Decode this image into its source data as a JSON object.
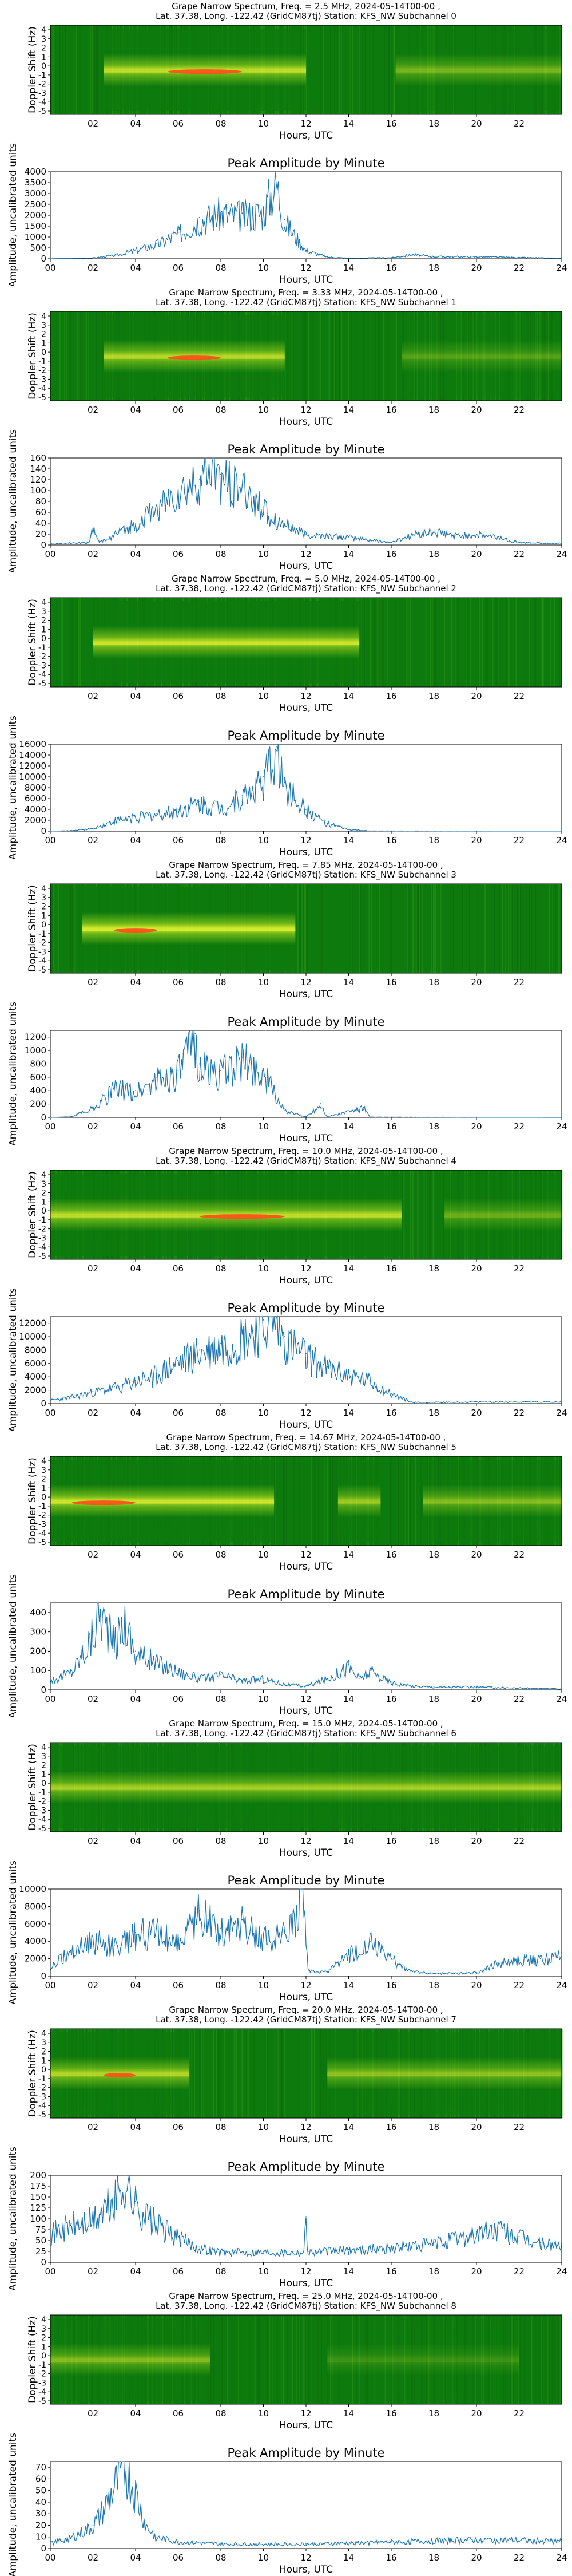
{
  "figure": {
    "x_ticks_spec": [
      "02",
      "04",
      "06",
      "08",
      "10",
      "12",
      "14",
      "16",
      "18",
      "20",
      "22"
    ],
    "x_ticks_amp": [
      "00",
      "02",
      "04",
      "06",
      "08",
      "10",
      "12",
      "14",
      "16",
      "18",
      "20",
      "22",
      "24"
    ],
    "x_label": "Hours, UTC",
    "spec_ylabel": "Doppler Shift (Hz)",
    "amp_ylabel": "Amplitude, uncalibrated units",
    "amp_title": "Peak Amplitude by Minute",
    "colors": {
      "line": "#1f77b4",
      "spec_bg": "#0d7a0d",
      "spec_mid": "#7fc21b",
      "spec_hot": "#ffff33",
      "spec_peak": "#ff4a1a"
    }
  },
  "chart_data": [
    {
      "type": "spectrogram+line",
      "spec_title_1": "Grape Narrow Spectrum, Freq. = 2.5 MHz, 2024-05-14T00-00 ,",
      "spec_title_2": "Lat.  37.38, Long. -122.42 (GridCM87tj) Station: KFS_NW Subchannel 0",
      "spec_y_ticks": [
        "4",
        "3",
        "2",
        "1",
        "0",
        "-1",
        "-2",
        "-3",
        "-4",
        "-5"
      ],
      "spec_band": [
        {
          "start": 2.5,
          "end": 12.0,
          "intensity": 0.75,
          "red_start": 5.5,
          "red_end": 9.0
        },
        {
          "start": 16.2,
          "end": 24.0,
          "intensity": 0.45,
          "red_start": 0,
          "red_end": 0
        }
      ],
      "ylim": [
        0,
        4000
      ],
      "y_ticks": [
        "0",
        "500",
        "1000",
        "1500",
        "2000",
        "2500",
        "3000",
        "3500",
        "4000"
      ],
      "envelope": [
        [
          0,
          0
        ],
        [
          1,
          20
        ],
        [
          2,
          40
        ],
        [
          3,
          150
        ],
        [
          4,
          400
        ],
        [
          5,
          700
        ],
        [
          6,
          1200
        ],
        [
          7,
          1900
        ],
        [
          8,
          2200
        ],
        [
          9,
          2100
        ],
        [
          10,
          2300
        ],
        [
          10.6,
          3800
        ],
        [
          11,
          1800
        ],
        [
          12,
          400
        ],
        [
          13,
          80
        ],
        [
          14,
          30
        ],
        [
          16,
          50
        ],
        [
          17,
          200
        ],
        [
          18,
          100
        ],
        [
          20,
          100
        ],
        [
          22,
          60
        ],
        [
          24,
          20
        ]
      ]
    },
    {
      "type": "spectrogram+line",
      "spec_title_1": "Grape Narrow Spectrum, Freq. = 3.33 MHz, 2024-05-14T00-00 ,",
      "spec_title_2": "Lat.  37.38, Long. -122.42 (GridCM87tj) Station: KFS_NW Subchannel 1",
      "spec_y_ticks": [
        "4",
        "3",
        "2",
        "1",
        "0",
        "-1",
        "-2",
        "-3",
        "-4",
        "-5"
      ],
      "spec_band": [
        {
          "start": 2.5,
          "end": 11.0,
          "intensity": 0.7,
          "red_start": 5.5,
          "red_end": 8.0
        },
        {
          "start": 16.5,
          "end": 24.0,
          "intensity": 0.3,
          "red_start": 0,
          "red_end": 0
        }
      ],
      "ylim": [
        0,
        160
      ],
      "y_ticks": [
        "0",
        "20",
        "40",
        "60",
        "80",
        "100",
        "120",
        "140",
        "160"
      ],
      "envelope": [
        [
          0,
          2
        ],
        [
          1.8,
          5
        ],
        [
          2,
          30
        ],
        [
          2.3,
          5
        ],
        [
          4,
          40
        ],
        [
          5,
          70
        ],
        [
          6,
          100
        ],
        [
          7,
          120
        ],
        [
          7.7,
          160
        ],
        [
          8,
          130
        ],
        [
          9,
          110
        ],
        [
          10,
          70
        ],
        [
          11,
          40
        ],
        [
          12,
          20
        ],
        [
          14,
          15
        ],
        [
          16,
          5
        ],
        [
          17,
          20
        ],
        [
          18,
          25
        ],
        [
          19,
          18
        ],
        [
          20,
          20
        ],
        [
          21,
          15
        ],
        [
          22,
          5
        ],
        [
          24,
          3
        ]
      ]
    },
    {
      "type": "spectrogram+line",
      "spec_title_1": "Grape Narrow Spectrum, Freq. = 5.0 MHz, 2024-05-14T00-00 ,",
      "spec_title_2": "Lat.  37.38, Long. -122.42 (GridCM87tj) Station: KFS_NW Subchannel 2",
      "spec_y_ticks": [
        "4",
        "3",
        "2",
        "1",
        "0",
        "-1",
        "-2",
        "-3",
        "-4",
        "-5"
      ],
      "spec_band": [
        {
          "start": 2.0,
          "end": 14.5,
          "intensity": 0.8,
          "red_start": 0,
          "red_end": 0
        }
      ],
      "ylim": [
        0,
        16000
      ],
      "y_ticks": [
        "0",
        "2000",
        "4000",
        "6000",
        "8000",
        "10000",
        "12000",
        "14000",
        "16000"
      ],
      "envelope": [
        [
          0,
          0
        ],
        [
          1,
          100
        ],
        [
          2,
          500
        ],
        [
          3,
          2000
        ],
        [
          4,
          2800
        ],
        [
          5,
          3200
        ],
        [
          6,
          4000
        ],
        [
          7,
          5500
        ],
        [
          8,
          4500
        ],
        [
          9,
          6500
        ],
        [
          10,
          10000
        ],
        [
          10.6,
          15500
        ],
        [
          11,
          9000
        ],
        [
          12,
          4000
        ],
        [
          13,
          1500
        ],
        [
          14,
          300
        ],
        [
          15,
          50
        ],
        [
          24,
          10
        ]
      ]
    },
    {
      "type": "spectrogram+line",
      "spec_title_1": "Grape Narrow Spectrum, Freq. = 7.85 MHz, 2024-05-14T00-00 ,",
      "spec_title_2": "Lat.  37.38, Long. -122.42 (GridCM87tj) Station: KFS_NW Subchannel 3",
      "spec_y_ticks": [
        "4",
        "3",
        "2",
        "1",
        "0",
        "-1",
        "-2",
        "-3",
        "-4",
        "-5"
      ],
      "spec_band": [
        {
          "start": 1.5,
          "end": 11.5,
          "intensity": 0.85,
          "red_start": 3.0,
          "red_end": 5.0
        }
      ],
      "ylim": [
        0,
        1300
      ],
      "y_ticks": [
        "0",
        "200",
        "400",
        "600",
        "800",
        "1000",
        "1200"
      ],
      "envelope": [
        [
          0,
          0
        ],
        [
          1,
          10
        ],
        [
          2,
          150
        ],
        [
          3,
          450
        ],
        [
          4,
          400
        ],
        [
          5,
          600
        ],
        [
          6,
          700
        ],
        [
          6.8,
          1250
        ],
        [
          7,
          800
        ],
        [
          8,
          700
        ],
        [
          9,
          900
        ],
        [
          10,
          700
        ],
        [
          11,
          100
        ],
        [
          12,
          10
        ],
        [
          12.7,
          210
        ],
        [
          13,
          10
        ],
        [
          14.7,
          150
        ],
        [
          15,
          5
        ],
        [
          24,
          0
        ]
      ]
    },
    {
      "type": "spectrogram+line",
      "spec_title_1": "Grape Narrow Spectrum, Freq. = 10.0 MHz, 2024-05-14T00-00 ,",
      "spec_title_2": "Lat.  37.38, Long. -122.42 (GridCM87tj) Station: KFS_NW Subchannel 4",
      "spec_y_ticks": [
        "4",
        "3",
        "2",
        "1",
        "0",
        "-1",
        "-2",
        "-3",
        "-4",
        "-5"
      ],
      "spec_band": [
        {
          "start": 0.0,
          "end": 16.5,
          "intensity": 0.75,
          "red_start": 7.0,
          "red_end": 11.0
        },
        {
          "start": 18.5,
          "end": 24.0,
          "intensity": 0.4,
          "red_start": 0,
          "red_end": 0
        }
      ],
      "ylim": [
        0,
        13000
      ],
      "y_ticks": [
        "0",
        "2000",
        "4000",
        "6000",
        "8000",
        "10000",
        "12000"
      ],
      "envelope": [
        [
          0,
          500
        ],
        [
          1,
          1000
        ],
        [
          2,
          1800
        ],
        [
          3,
          2500
        ],
        [
          4,
          3500
        ],
        [
          5,
          4500
        ],
        [
          6,
          6500
        ],
        [
          7,
          8000
        ],
        [
          8,
          9000
        ],
        [
          9,
          10500
        ],
        [
          10,
          12500
        ],
        [
          10.5,
          13500
        ],
        [
          11,
          10000
        ],
        [
          12,
          7500
        ],
        [
          13,
          5500
        ],
        [
          14,
          4500
        ],
        [
          15,
          3500
        ],
        [
          16,
          1500
        ],
        [
          17,
          200
        ],
        [
          24,
          300
        ]
      ]
    },
    {
      "type": "spectrogram+line",
      "spec_title_1": "Grape Narrow Spectrum, Freq. = 14.67 MHz, 2024-05-14T00-00 ,",
      "spec_title_2": "Lat.  37.38, Long. -122.42 (GridCM87tj) Station: KFS_NW Subchannel 5",
      "spec_y_ticks": [
        "4",
        "3",
        "2",
        "1",
        "0",
        "-1",
        "-2",
        "-3",
        "-4",
        "-5"
      ],
      "spec_band": [
        {
          "start": 0.0,
          "end": 10.5,
          "intensity": 0.8,
          "red_start": 1.0,
          "red_end": 4.0
        },
        {
          "start": 13.5,
          "end": 15.5,
          "intensity": 0.6,
          "red_start": 0,
          "red_end": 0
        },
        {
          "start": 17.5,
          "end": 24.0,
          "intensity": 0.5,
          "red_start": 0,
          "red_end": 0
        }
      ],
      "ylim": [
        0,
        450
      ],
      "y_ticks": [
        "0",
        "100",
        "200",
        "300",
        "400"
      ],
      "envelope": [
        [
          0,
          50
        ],
        [
          1,
          100
        ],
        [
          2,
          300
        ],
        [
          2.3,
          450
        ],
        [
          3,
          250
        ],
        [
          3.5,
          380
        ],
        [
          4,
          200
        ],
        [
          5,
          150
        ],
        [
          6,
          100
        ],
        [
          7,
          60
        ],
        [
          8,
          80
        ],
        [
          9,
          50
        ],
        [
          10,
          60
        ],
        [
          11,
          30
        ],
        [
          12,
          20
        ],
        [
          13,
          60
        ],
        [
          14,
          130
        ],
        [
          14.5,
          60
        ],
        [
          15,
          100
        ],
        [
          16,
          40
        ],
        [
          17,
          20
        ],
        [
          18,
          15
        ],
        [
          20,
          15
        ],
        [
          22,
          10
        ],
        [
          24,
          5
        ]
      ]
    },
    {
      "type": "spectrogram+line",
      "spec_title_1": "Grape Narrow Spectrum, Freq. = 15.0 MHz, 2024-05-14T00-00 ,",
      "spec_title_2": "Lat.  37.38, Long. -122.42 (GridCM87tj) Station: KFS_NW Subchannel 6",
      "spec_y_ticks": [
        "4",
        "3",
        "2",
        "1",
        "0",
        "-1",
        "-2",
        "-3",
        "-4",
        "-5"
      ],
      "spec_band": [
        {
          "start": 0.0,
          "end": 24.0,
          "intensity": 0.65,
          "red_start": 0,
          "red_end": 0
        }
      ],
      "ylim": [
        0,
        10000
      ],
      "y_ticks": [
        "0",
        "2000",
        "4000",
        "6000",
        "8000",
        "10000"
      ],
      "envelope": [
        [
          0,
          1000
        ],
        [
          1,
          3000
        ],
        [
          2,
          4500
        ],
        [
          3,
          3500
        ],
        [
          4,
          5000
        ],
        [
          5,
          5500
        ],
        [
          6,
          4000
        ],
        [
          7,
          7500
        ],
        [
          8,
          5500
        ],
        [
          9,
          6500
        ],
        [
          10,
          4500
        ],
        [
          11,
          5000
        ],
        [
          11.9,
          10500
        ],
        [
          12.1,
          600
        ],
        [
          13,
          500
        ],
        [
          14,
          2500
        ],
        [
          15,
          4000
        ],
        [
          16,
          2000
        ],
        [
          17,
          500
        ],
        [
          18,
          300
        ],
        [
          20,
          400
        ],
        [
          21,
          1500
        ],
        [
          22,
          1800
        ],
        [
          23,
          2000
        ],
        [
          24,
          2500
        ]
      ]
    },
    {
      "type": "spectrogram+line",
      "spec_title_1": "Grape Narrow Spectrum, Freq. = 20.0 MHz, 2024-05-14T00-00 ,",
      "spec_title_2": "Lat.  37.38, Long. -122.42 (GridCM87tj) Station: KFS_NW Subchannel 7",
      "spec_y_ticks": [
        "4",
        "3",
        "2",
        "1",
        "0",
        "-1",
        "-2",
        "-3",
        "-4",
        "-5"
      ],
      "spec_band": [
        {
          "start": 0.0,
          "end": 6.5,
          "intensity": 0.7,
          "red_start": 2.5,
          "red_end": 4.0
        },
        {
          "start": 13.0,
          "end": 24.0,
          "intensity": 0.55,
          "red_start": 0,
          "red_end": 0
        }
      ],
      "ylim": [
        0,
        200
      ],
      "y_ticks": [
        "0",
        "25",
        "50",
        "75",
        "100",
        "125",
        "150",
        "175",
        "200"
      ],
      "envelope": [
        [
          0,
          70
        ],
        [
          1,
          90
        ],
        [
          2,
          100
        ],
        [
          3,
          150
        ],
        [
          3.5,
          200
        ],
        [
          4,
          140
        ],
        [
          5,
          90
        ],
        [
          6,
          60
        ],
        [
          7,
          35
        ],
        [
          8,
          25
        ],
        [
          10,
          25
        ],
        [
          11.9,
          25
        ],
        [
          12,
          105
        ],
        [
          12.1,
          25
        ],
        [
          14,
          30
        ],
        [
          16,
          35
        ],
        [
          18,
          45
        ],
        [
          20,
          70
        ],
        [
          21,
          80
        ],
        [
          22,
          60
        ],
        [
          23,
          45
        ],
        [
          24,
          40
        ]
      ]
    },
    {
      "type": "spectrogram+line",
      "spec_title_1": "Grape Narrow Spectrum, Freq. = 25.0 MHz, 2024-05-14T00-00 ,",
      "spec_title_2": "Lat.  37.38, Long. -122.42 (GridCM87tj) Station: KFS_NW Subchannel 8",
      "spec_y_ticks": [
        "4",
        "3",
        "2",
        "1",
        "0",
        "-1",
        "-2",
        "-3",
        "-4",
        "-5"
      ],
      "spec_band": [
        {
          "start": 0.0,
          "end": 7.5,
          "intensity": 0.5,
          "red_start": 0,
          "red_end": 0
        },
        {
          "start": 13.0,
          "end": 22.0,
          "intensity": 0.2,
          "red_start": 0,
          "red_end": 0
        }
      ],
      "ylim": [
        0,
        75
      ],
      "y_ticks": [
        "0",
        "10",
        "20",
        "30",
        "40",
        "50",
        "60",
        "70"
      ],
      "envelope": [
        [
          0,
          5
        ],
        [
          1,
          10
        ],
        [
          2,
          20
        ],
        [
          2.5,
          35
        ],
        [
          3,
          55
        ],
        [
          3.5,
          75
        ],
        [
          4,
          50
        ],
        [
          4.5,
          20
        ],
        [
          5,
          10
        ],
        [
          6,
          6
        ],
        [
          8,
          4
        ],
        [
          12,
          4
        ],
        [
          16,
          6
        ],
        [
          20,
          8
        ],
        [
          24,
          7
        ]
      ]
    }
  ]
}
